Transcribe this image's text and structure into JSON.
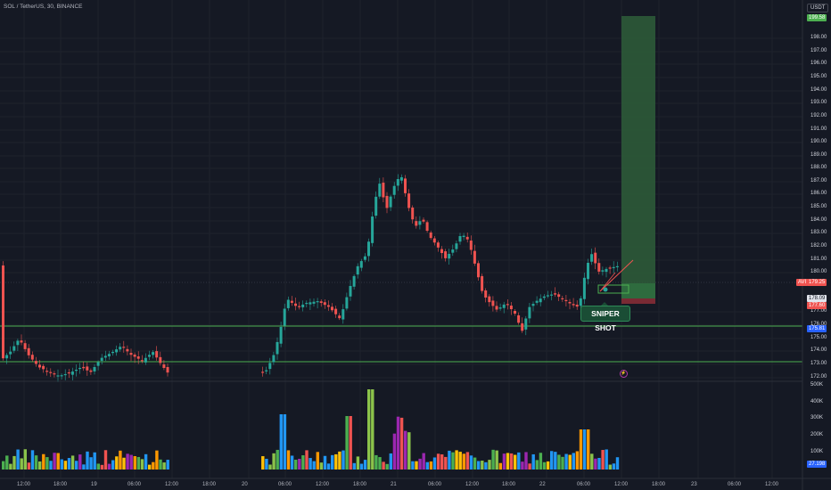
{
  "header": {
    "symbol_title": "SOL / TetherUS, 30, BINANCE",
    "currency": "USDT"
  },
  "annotation": {
    "label": "SNIPER SHOT"
  },
  "price_axis": {
    "ticks": [
      "198.00",
      "197.00",
      "196.00",
      "195.00",
      "194.00",
      "193.00",
      "192.00",
      "191.00",
      "190.00",
      "189.00",
      "188.00",
      "187.00",
      "186.00",
      "185.00",
      "184.00",
      "183.00",
      "182.00",
      "181.00",
      "180.00",
      "177.00",
      "176.00",
      "175.00",
      "174.00",
      "173.00",
      "172.00"
    ],
    "volume_ticks": [
      "500K",
      "400K",
      "300K",
      "200K",
      "100K"
    ]
  },
  "price_tags": {
    "target": "199.58",
    "last_label": "AVI",
    "last": "179.25",
    "entry": "178.09",
    "stop": "177.60",
    "support": "175.81",
    "volume": "27.198"
  },
  "time_axis": {
    "labels": [
      "12:00",
      "18:00",
      "19",
      "06:00",
      "12:00",
      "18:00",
      "20",
      "06:00",
      "12:00",
      "18:00",
      "21",
      "06:00",
      "12:00",
      "18:00",
      "22",
      "06:00",
      "12:00",
      "18:00",
      "23",
      "06:00",
      "12:00"
    ]
  },
  "colors": {
    "up": "#26a69a",
    "down": "#ef5350",
    "support_line": "#4caf50",
    "target_zone": "#2e5e3a",
    "stop_zone": "#7a2a34"
  },
  "chart_data": {
    "type": "candlestick",
    "y_range": [
      172,
      199.6
    ],
    "support_levels": [
      175.81,
      173.2
    ],
    "trade_setup": {
      "entry": 178.09,
      "target": 199.58,
      "stop": 177.6
    }
  }
}
